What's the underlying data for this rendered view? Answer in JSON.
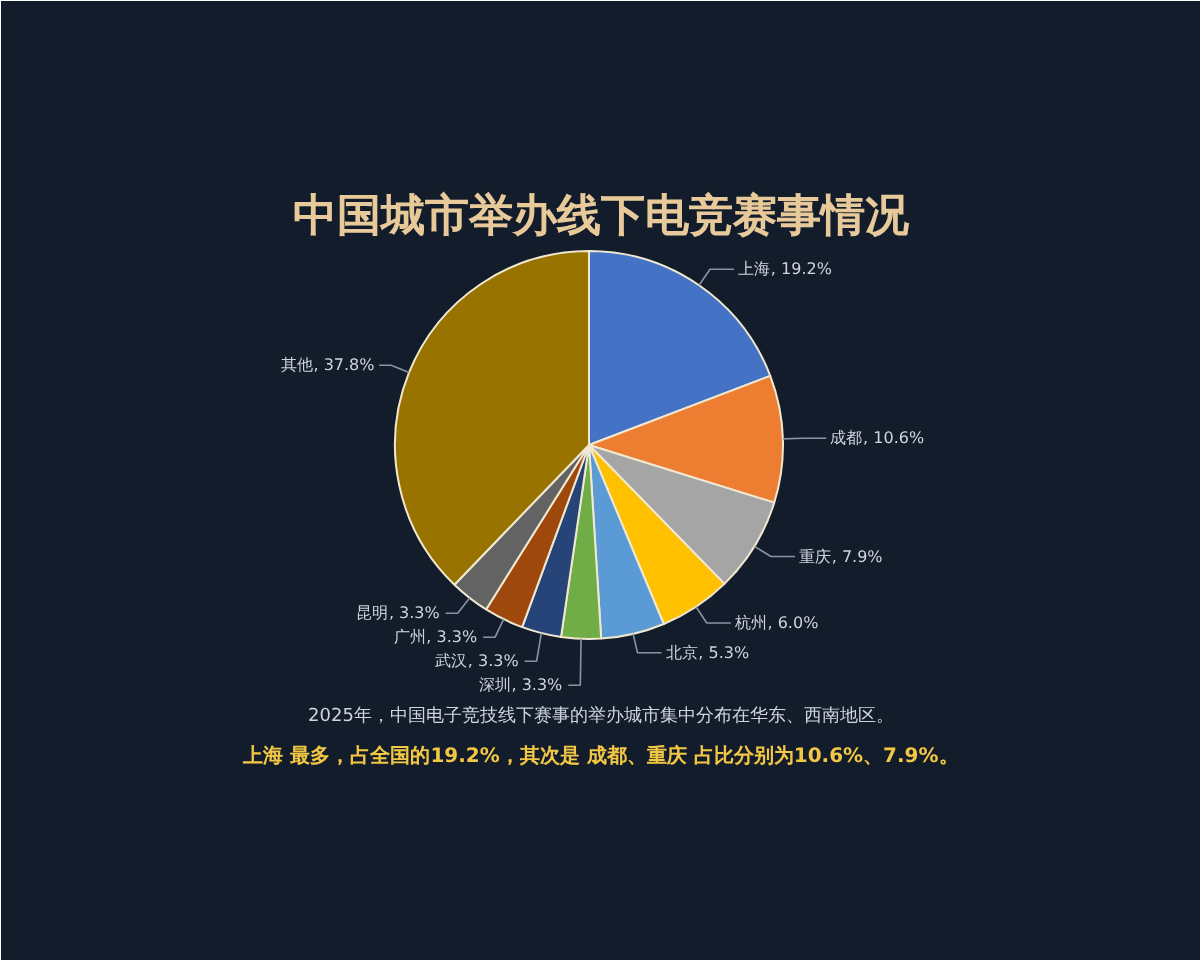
{
  "chart_data": {
    "type": "pie",
    "title": "中国城市举办线下电竞赛事情况",
    "categories": [
      "上海",
      "成都",
      "重庆",
      "杭州",
      "北京",
      "深圳",
      "武汉",
      "广州",
      "昆明",
      "其他"
    ],
    "values": [
      19.2,
      10.6,
      7.9,
      6.0,
      5.3,
      3.3,
      3.3,
      3.3,
      3.3,
      37.8
    ],
    "colors": [
      "#4472c4",
      "#ed7d31",
      "#a5a5a5",
      "#ffc000",
      "#5b9bd5",
      "#70ad47",
      "#264478",
      "#9e480e",
      "#636363",
      "#997300"
    ],
    "value_labels": [
      ", 19.2%",
      ", 10.6%",
      ", 7.9%",
      ", 6.0%",
      ", 5.3%",
      ", 3.3%",
      ", 3.3%",
      ", 3.3%",
      ", 3.3%",
      ", 37.8%"
    ],
    "annotations": [
      "2025年，中国电子竞技线下赛事的举办城市集中分布在华东、西南地区。",
      "上海 最多，占全国的19.2%，其次是 成都、重庆 占比分别为10.6%、7.9%。"
    ]
  }
}
